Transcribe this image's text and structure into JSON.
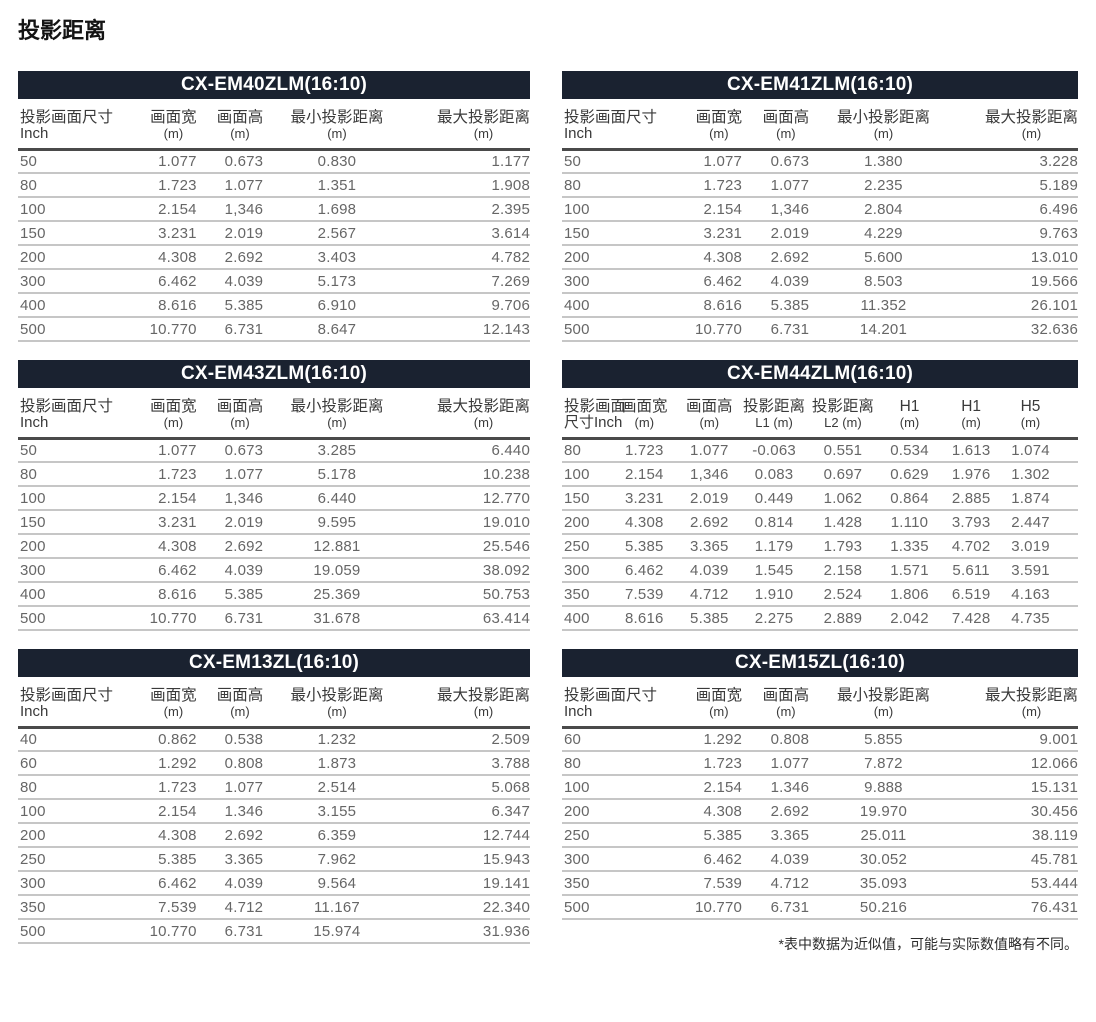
{
  "page": {
    "title": "投影距离",
    "footnote": "*表中数据为近似值，可能与实际数值略有不同。"
  },
  "colors": {
    "header_bar": "#1a2230",
    "header_rule": "#4a4a4a",
    "row_rule": "#c6c6c6"
  },
  "tables": [
    {
      "title": "CX-EM40ZLM(16:10)",
      "columns": [
        {
          "l1": "投影画面尺寸",
          "l2": "Inch"
        },
        {
          "l1": "画面宽",
          "l2": "(m)"
        },
        {
          "l1": "画面高",
          "l2": "(m)"
        },
        {
          "l1": "最小投影距离",
          "l2": "(m)"
        },
        {
          "l1": "最大投影距离",
          "l2": "(m)"
        }
      ],
      "rows": [
        [
          "50",
          "1.077",
          "0.673",
          "0.830",
          "1.177"
        ],
        [
          "80",
          "1.723",
          "1.077",
          "1.351",
          "1.908"
        ],
        [
          "100",
          "2.154",
          "1,346",
          "1.698",
          "2.395"
        ],
        [
          "150",
          "3.231",
          "2.019",
          "2.567",
          "3.614"
        ],
        [
          "200",
          "4.308",
          "2.692",
          "3.403",
          "4.782"
        ],
        [
          "300",
          "6.462",
          "4.039",
          "5.173",
          "7.269"
        ],
        [
          "400",
          "8.616",
          "5.385",
          "6.910",
          "9.706"
        ],
        [
          "500",
          "10.770",
          "6.731",
          "8.647",
          "12.143"
        ]
      ]
    },
    {
      "title": "CX-EM41ZLM(16:10)",
      "columns": [
        {
          "l1": "投影画面尺寸",
          "l2": "Inch"
        },
        {
          "l1": "画面宽",
          "l2": "(m)"
        },
        {
          "l1": "画面高",
          "l2": "(m)"
        },
        {
          "l1": "最小投影距离",
          "l2": "(m)"
        },
        {
          "l1": "最大投影距离",
          "l2": "(m)"
        }
      ],
      "rows": [
        [
          "50",
          "1.077",
          "0.673",
          "1.380",
          "3.228"
        ],
        [
          "80",
          "1.723",
          "1.077",
          "2.235",
          "5.189"
        ],
        [
          "100",
          "2.154",
          "1,346",
          "2.804",
          "6.496"
        ],
        [
          "150",
          "3.231",
          "2.019",
          "4.229",
          "9.763"
        ],
        [
          "200",
          "4.308",
          "2.692",
          "5.600",
          "13.010"
        ],
        [
          "300",
          "6.462",
          "4.039",
          "8.503",
          "19.566"
        ],
        [
          "400",
          "8.616",
          "5.385",
          "11.352",
          "26.101"
        ],
        [
          "500",
          "10.770",
          "6.731",
          "14.201",
          "32.636"
        ]
      ]
    },
    {
      "title": "CX-EM43ZLM(16:10)",
      "columns": [
        {
          "l1": "投影画面尺寸",
          "l2": "Inch"
        },
        {
          "l1": "画面宽",
          "l2": "(m)"
        },
        {
          "l1": "画面高",
          "l2": "(m)"
        },
        {
          "l1": "最小投影距离",
          "l2": "(m)"
        },
        {
          "l1": "最大投影距离",
          "l2": "(m)"
        }
      ],
      "rows": [
        [
          "50",
          "1.077",
          "0.673",
          "3.285",
          "6.440"
        ],
        [
          "80",
          "1.723",
          "1.077",
          "5.178",
          "10.238"
        ],
        [
          "100",
          "2.154",
          "1,346",
          "6.440",
          "12.770"
        ],
        [
          "150",
          "3.231",
          "2.019",
          "9.595",
          "19.010"
        ],
        [
          "200",
          "4.308",
          "2.692",
          "12.881",
          "25.546"
        ],
        [
          "300",
          "6.462",
          "4.039",
          "19.059",
          "38.092"
        ],
        [
          "400",
          "8.616",
          "5.385",
          "25.369",
          "50.753"
        ],
        [
          "500",
          "10.770",
          "6.731",
          "31.678",
          "63.414"
        ]
      ]
    },
    {
      "title": "CX-EM44ZLM(16:10)",
      "columns": [
        {
          "l1": "投影画面",
          "l2": "尺寸Inch"
        },
        {
          "l1": "画面宽",
          "l2": "(m)"
        },
        {
          "l1": "画面高",
          "l2": "(m)"
        },
        {
          "l1": "投影距离",
          "l2": "L1 (m)"
        },
        {
          "l1": "投影距离",
          "l2": "L2 (m)"
        },
        {
          "l1": "H1",
          "l2": "(m)"
        },
        {
          "l1": "H1",
          "l2": "(m)"
        },
        {
          "l1": "H5",
          "l2": "(m)"
        }
      ],
      "rows": [
        [
          "80",
          "1.723",
          "1.077",
          "-0.063",
          "0.551",
          "0.534",
          "1.613",
          "1.074"
        ],
        [
          "100",
          "2.154",
          "1,346",
          "0.083",
          "0.697",
          "0.629",
          "1.976",
          "1.302"
        ],
        [
          "150",
          "3.231",
          "2.019",
          "0.449",
          "1.062",
          "0.864",
          "2.885",
          "1.874"
        ],
        [
          "200",
          "4.308",
          "2.692",
          "0.814",
          "1.428",
          "1.110",
          "3.793",
          "2.447"
        ],
        [
          "250",
          "5.385",
          "3.365",
          "1.179",
          "1.793",
          "1.335",
          "4.702",
          "3.019"
        ],
        [
          "300",
          "6.462",
          "4.039",
          "1.545",
          "2.158",
          "1.571",
          "5.611",
          "3.591"
        ],
        [
          "350",
          "7.539",
          "4.712",
          "1.910",
          "2.524",
          "1.806",
          "6.519",
          "4.163"
        ],
        [
          "400",
          "8.616",
          "5.385",
          "2.275",
          "2.889",
          "2.042",
          "7.428",
          "4.735"
        ]
      ]
    },
    {
      "title": "CX-EM13ZL(16:10)",
      "columns": [
        {
          "l1": "投影画面尺寸",
          "l2": "Inch"
        },
        {
          "l1": "画面宽",
          "l2": "(m)"
        },
        {
          "l1": "画面高",
          "l2": "(m)"
        },
        {
          "l1": "最小投影距离",
          "l2": "(m)"
        },
        {
          "l1": "最大投影距离",
          "l2": "(m)"
        }
      ],
      "rows": [
        [
          "40",
          "0.862",
          "0.538",
          "1.232",
          "2.509"
        ],
        [
          "60",
          "1.292",
          "0.808",
          "1.873",
          "3.788"
        ],
        [
          "80",
          "1.723",
          "1.077",
          "2.514",
          "5.068"
        ],
        [
          "100",
          "2.154",
          "1.346",
          "3.155",
          "6.347"
        ],
        [
          "200",
          "4.308",
          "2.692",
          "6.359",
          "12.744"
        ],
        [
          "250",
          "5.385",
          "3.365",
          "7.962",
          "15.943"
        ],
        [
          "300",
          "6.462",
          "4.039",
          "9.564",
          "19.141"
        ],
        [
          "350",
          "7.539",
          "4.712",
          "11.167",
          "22.340"
        ],
        [
          "500",
          "10.770",
          "6.731",
          "15.974",
          "31.936"
        ]
      ]
    },
    {
      "title": "CX-EM15ZL(16:10)",
      "columns": [
        {
          "l1": "投影画面尺寸",
          "l2": "Inch"
        },
        {
          "l1": "画面宽",
          "l2": "(m)"
        },
        {
          "l1": "画面高",
          "l2": "(m)"
        },
        {
          "l1": "最小投影距离",
          "l2": "(m)"
        },
        {
          "l1": "最大投影距离",
          "l2": "(m)"
        }
      ],
      "rows": [
        [
          "60",
          "1.292",
          "0.808",
          "5.855",
          "9.001"
        ],
        [
          "80",
          "1.723",
          "1.077",
          "7.872",
          "12.066"
        ],
        [
          "100",
          "2.154",
          "1.346",
          "9.888",
          "15.131"
        ],
        [
          "200",
          "4.308",
          "2.692",
          "19.970",
          "30.456"
        ],
        [
          "250",
          "5.385",
          "3.365",
          "25.011",
          "38.119"
        ],
        [
          "300",
          "6.462",
          "4.039",
          "30.052",
          "45.781"
        ],
        [
          "350",
          "7.539",
          "4.712",
          "35.093",
          "53.444"
        ],
        [
          "500",
          "10.770",
          "6.731",
          "50.216",
          "76.431"
        ]
      ]
    }
  ]
}
